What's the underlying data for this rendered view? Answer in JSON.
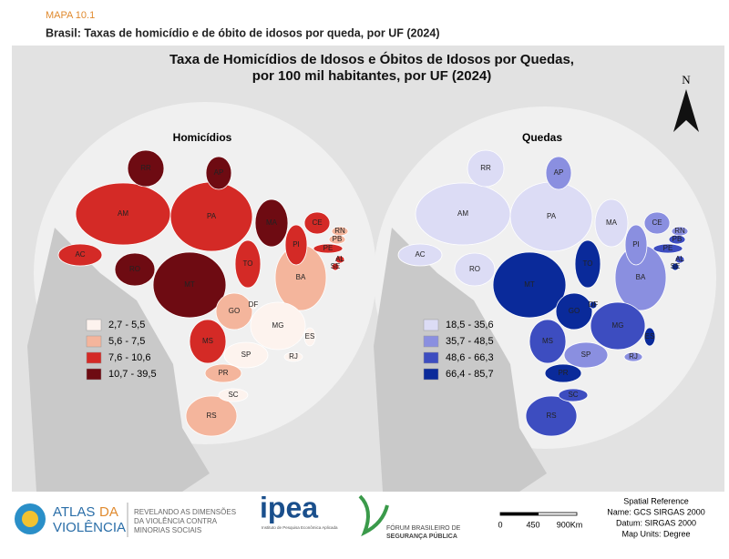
{
  "header": {
    "kicker": "MAPA 10.1",
    "title": "Brasil: Taxas de homicídio e de óbito de idosos por queda, por UF (2024)"
  },
  "map_title": [
    "Taxa de Homicídios de Idosos e Óbitos de Idosos por Quedas,",
    "por 100 mil habitantes, por UF (2024)"
  ],
  "north": "N",
  "maps": [
    {
      "title": "Homicídios",
      "legend": [
        {
          "label": "2,7 - 5,5",
          "color": "#fdf3ee"
        },
        {
          "label": "5,6 - 7,5",
          "color": "#f4b59c"
        },
        {
          "label": "7,6 - 10,6",
          "color": "#d42a26"
        },
        {
          "label": "10,7 - 39,5",
          "color": "#6e0b12"
        }
      ],
      "states": [
        {
          "uf": "AM",
          "class": 2
        },
        {
          "uf": "PA",
          "class": 2
        },
        {
          "uf": "MT",
          "class": 3
        },
        {
          "uf": "BA",
          "class": 1
        },
        {
          "uf": "MG",
          "class": 0
        },
        {
          "uf": "MS",
          "class": 2
        },
        {
          "uf": "GO",
          "class": 1
        },
        {
          "uf": "MA",
          "class": 3
        },
        {
          "uf": "RS",
          "class": 1
        },
        {
          "uf": "TO",
          "class": 2
        },
        {
          "uf": "PI",
          "class": 2
        },
        {
          "uf": "SP",
          "class": 0
        },
        {
          "uf": "RO",
          "class": 3
        },
        {
          "uf": "RR",
          "class": 3
        },
        {
          "uf": "PR",
          "class": 1
        },
        {
          "uf": "AC",
          "class": 2
        },
        {
          "uf": "CE",
          "class": 2
        },
        {
          "uf": "AP",
          "class": 3
        },
        {
          "uf": "PE",
          "class": 2
        },
        {
          "uf": "SC",
          "class": 0
        },
        {
          "uf": "PB",
          "class": 1
        },
        {
          "uf": "RN",
          "class": 1
        },
        {
          "uf": "ES",
          "class": 0
        },
        {
          "uf": "RJ",
          "class": 0
        },
        {
          "uf": "AL",
          "class": 2
        },
        {
          "uf": "SE",
          "class": 2
        },
        {
          "uf": "DF",
          "class": 0
        }
      ]
    },
    {
      "title": "Quedas",
      "legend": [
        {
          "label": "18,5 - 35,6",
          "color": "#dcdcf5"
        },
        {
          "label": "35,7 - 48,5",
          "color": "#8a8fe0"
        },
        {
          "label": "48,6 - 66,3",
          "color": "#3d4dc0"
        },
        {
          "label": "66,4 - 85,7",
          "color": "#0a2a9a"
        }
      ],
      "states": [
        {
          "uf": "AM",
          "class": 0
        },
        {
          "uf": "PA",
          "class": 0
        },
        {
          "uf": "MT",
          "class": 3
        },
        {
          "uf": "BA",
          "class": 1
        },
        {
          "uf": "MG",
          "class": 2
        },
        {
          "uf": "MS",
          "class": 2
        },
        {
          "uf": "GO",
          "class": 3
        },
        {
          "uf": "MA",
          "class": 0
        },
        {
          "uf": "RS",
          "class": 2
        },
        {
          "uf": "TO",
          "class": 3
        },
        {
          "uf": "PI",
          "class": 1
        },
        {
          "uf": "SP",
          "class": 1
        },
        {
          "uf": "RO",
          "class": 0
        },
        {
          "uf": "RR",
          "class": 0
        },
        {
          "uf": "PR",
          "class": 3
        },
        {
          "uf": "AC",
          "class": 0
        },
        {
          "uf": "CE",
          "class": 1
        },
        {
          "uf": "AP",
          "class": 1
        },
        {
          "uf": "PE",
          "class": 2
        },
        {
          "uf": "SC",
          "class": 2
        },
        {
          "uf": "PB",
          "class": 2
        },
        {
          "uf": "RN",
          "class": 1
        },
        {
          "uf": "ES",
          "class": 3
        },
        {
          "uf": "RJ",
          "class": 1
        },
        {
          "uf": "AL",
          "class": 2
        },
        {
          "uf": "SE",
          "class": 3
        },
        {
          "uf": "DF",
          "class": 3
        }
      ]
    }
  ],
  "footer": {
    "atlas_name": [
      "ATLAS",
      "DA",
      "VIOLÊNCIA"
    ],
    "atlas_tagline": [
      "REVELANDO AS DIMENSÕES",
      "DA VIOLÊNCIA CONTRA",
      "MINORIAS SOCIAIS"
    ],
    "ipea": "ipea",
    "ipea_sub": "Instituto de Pesquisa Econômica Aplicada",
    "forum": [
      "FÓRUM BRASILEIRO DE",
      "SEGURANÇA PÚBLICA"
    ],
    "scale": [
      "0",
      "450",
      "900Km"
    ],
    "spatial_reference": [
      "Spatial Reference",
      "Name: GCS SIRGAS 2000",
      "Datum: SIRGAS 2000",
      "Map Units: Degree"
    ]
  }
}
